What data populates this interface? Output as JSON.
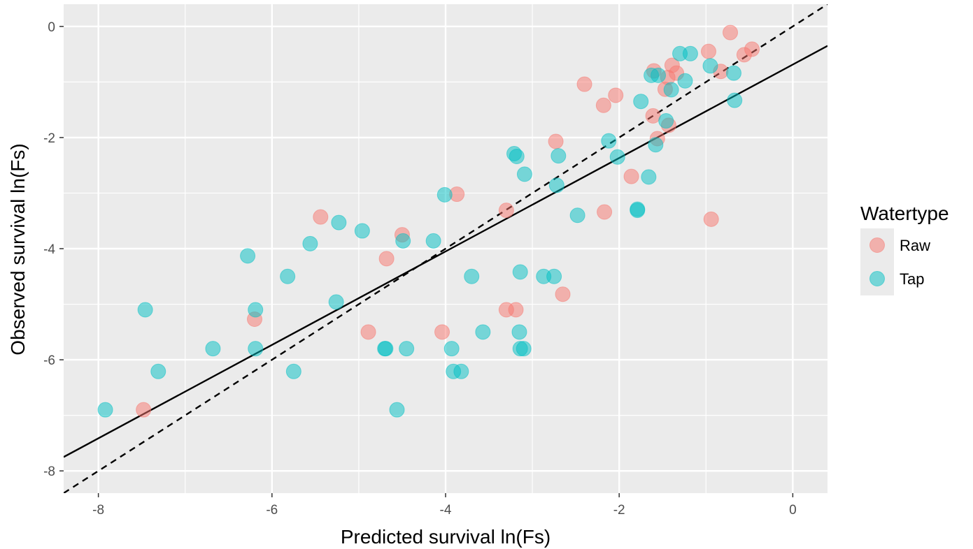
{
  "chart_data": {
    "type": "scatter",
    "title": "",
    "xlabel": "Predicted survival ln(Fs)",
    "ylabel": "Observed survival ln(Fs)",
    "xlim": [
      -8.4,
      0.4
    ],
    "ylim": [
      -8.4,
      0.4
    ],
    "x_ticks": [
      -8,
      -6,
      -4,
      -2,
      0
    ],
    "y_ticks": [
      0,
      -2,
      -4,
      -6,
      -8
    ],
    "x_tick_labels": [
      "-8",
      "-6",
      "-4",
      "-2",
      "0"
    ],
    "y_tick_labels": [
      "0",
      "-2",
      "-4",
      "-6",
      "-8"
    ],
    "grid": true,
    "legend": {
      "title": "Watertype",
      "position": "right"
    },
    "series": [
      {
        "name": "Raw",
        "color": "#F8766D",
        "points": [
          [
            -7.48,
            -6.9
          ],
          [
            -6.2,
            -5.27
          ],
          [
            -5.44,
            -3.43
          ],
          [
            -4.89,
            -5.5
          ],
          [
            -4.68,
            -4.18
          ],
          [
            -4.5,
            -3.75
          ],
          [
            -4.04,
            -5.5
          ],
          [
            -3.87,
            -3.02
          ],
          [
            -3.3,
            -5.1
          ],
          [
            -3.3,
            -3.31
          ],
          [
            -3.19,
            -5.1
          ],
          [
            -2.73,
            -2.07
          ],
          [
            -2.65,
            -4.82
          ],
          [
            -2.4,
            -1.04
          ],
          [
            -2.18,
            -1.42
          ],
          [
            -2.17,
            -3.34
          ],
          [
            -2.04,
            -1.24
          ],
          [
            -1.86,
            -2.7
          ],
          [
            -1.61,
            -1.61
          ],
          [
            -1.6,
            -0.8
          ],
          [
            -1.56,
            -2.02
          ],
          [
            -1.47,
            -1.13
          ],
          [
            -1.44,
            -0.92
          ],
          [
            -1.43,
            -1.78
          ],
          [
            -1.39,
            -0.7
          ],
          [
            -1.34,
            -0.84
          ],
          [
            -0.97,
            -0.45
          ],
          [
            -0.94,
            -3.47
          ],
          [
            -0.83,
            -0.81
          ],
          [
            -0.72,
            -0.11
          ],
          [
            -0.56,
            -0.51
          ],
          [
            -0.47,
            -0.41
          ]
        ]
      },
      {
        "name": "Tap",
        "color": "#00BFC4",
        "points": [
          [
            -7.92,
            -6.9
          ],
          [
            -7.46,
            -5.1
          ],
          [
            -7.31,
            -6.21
          ],
          [
            -6.68,
            -5.8
          ],
          [
            -6.28,
            -4.13
          ],
          [
            -6.19,
            -5.1
          ],
          [
            -6.19,
            -5.8
          ],
          [
            -5.82,
            -4.5
          ],
          [
            -5.75,
            -6.21
          ],
          [
            -5.56,
            -3.91
          ],
          [
            -5.26,
            -4.96
          ],
          [
            -5.23,
            -3.53
          ],
          [
            -4.96,
            -3.68
          ],
          [
            -4.7,
            -5.8
          ],
          [
            -4.69,
            -5.8
          ],
          [
            -4.56,
            -6.9
          ],
          [
            -4.49,
            -3.86
          ],
          [
            -4.45,
            -5.8
          ],
          [
            -4.14,
            -3.86
          ],
          [
            -4.01,
            -3.03
          ],
          [
            -3.93,
            -5.8
          ],
          [
            -3.91,
            -6.21
          ],
          [
            -3.82,
            -6.21
          ],
          [
            -3.7,
            -4.5
          ],
          [
            -3.57,
            -5.5
          ],
          [
            -3.21,
            -2.29
          ],
          [
            -3.18,
            -2.34
          ],
          [
            -3.15,
            -5.5
          ],
          [
            -3.14,
            -4.42
          ],
          [
            -3.14,
            -5.8
          ],
          [
            -3.1,
            -5.8
          ],
          [
            -3.09,
            -2.66
          ],
          [
            -2.87,
            -4.5
          ],
          [
            -2.75,
            -4.5
          ],
          [
            -2.72,
            -2.86
          ],
          [
            -2.7,
            -2.33
          ],
          [
            -2.48,
            -3.4
          ],
          [
            -2.12,
            -2.06
          ],
          [
            -2.02,
            -2.35
          ],
          [
            -1.79,
            -3.29
          ],
          [
            -1.79,
            -3.31
          ],
          [
            -1.75,
            -1.35
          ],
          [
            -1.66,
            -2.71
          ],
          [
            -1.63,
            -0.88
          ],
          [
            -1.58,
            -2.13
          ],
          [
            -1.55,
            -0.88
          ],
          [
            -1.46,
            -1.7
          ],
          [
            -1.4,
            -1.14
          ],
          [
            -1.3,
            -0.49
          ],
          [
            -1.24,
            -0.98
          ],
          [
            -1.18,
            -0.49
          ],
          [
            -0.95,
            -0.71
          ],
          [
            -0.68,
            -0.84
          ],
          [
            -0.67,
            -1.33
          ]
        ]
      }
    ],
    "lines": [
      {
        "name": "fit",
        "style": "solid",
        "color": "#000000",
        "points": [
          [
            -8.4,
            -7.75
          ],
          [
            0.4,
            -0.35
          ]
        ]
      },
      {
        "name": "identity",
        "style": "dashed",
        "color": "#000000",
        "points": [
          [
            -8.4,
            -8.4
          ],
          [
            0.4,
            0.4
          ]
        ]
      }
    ]
  }
}
